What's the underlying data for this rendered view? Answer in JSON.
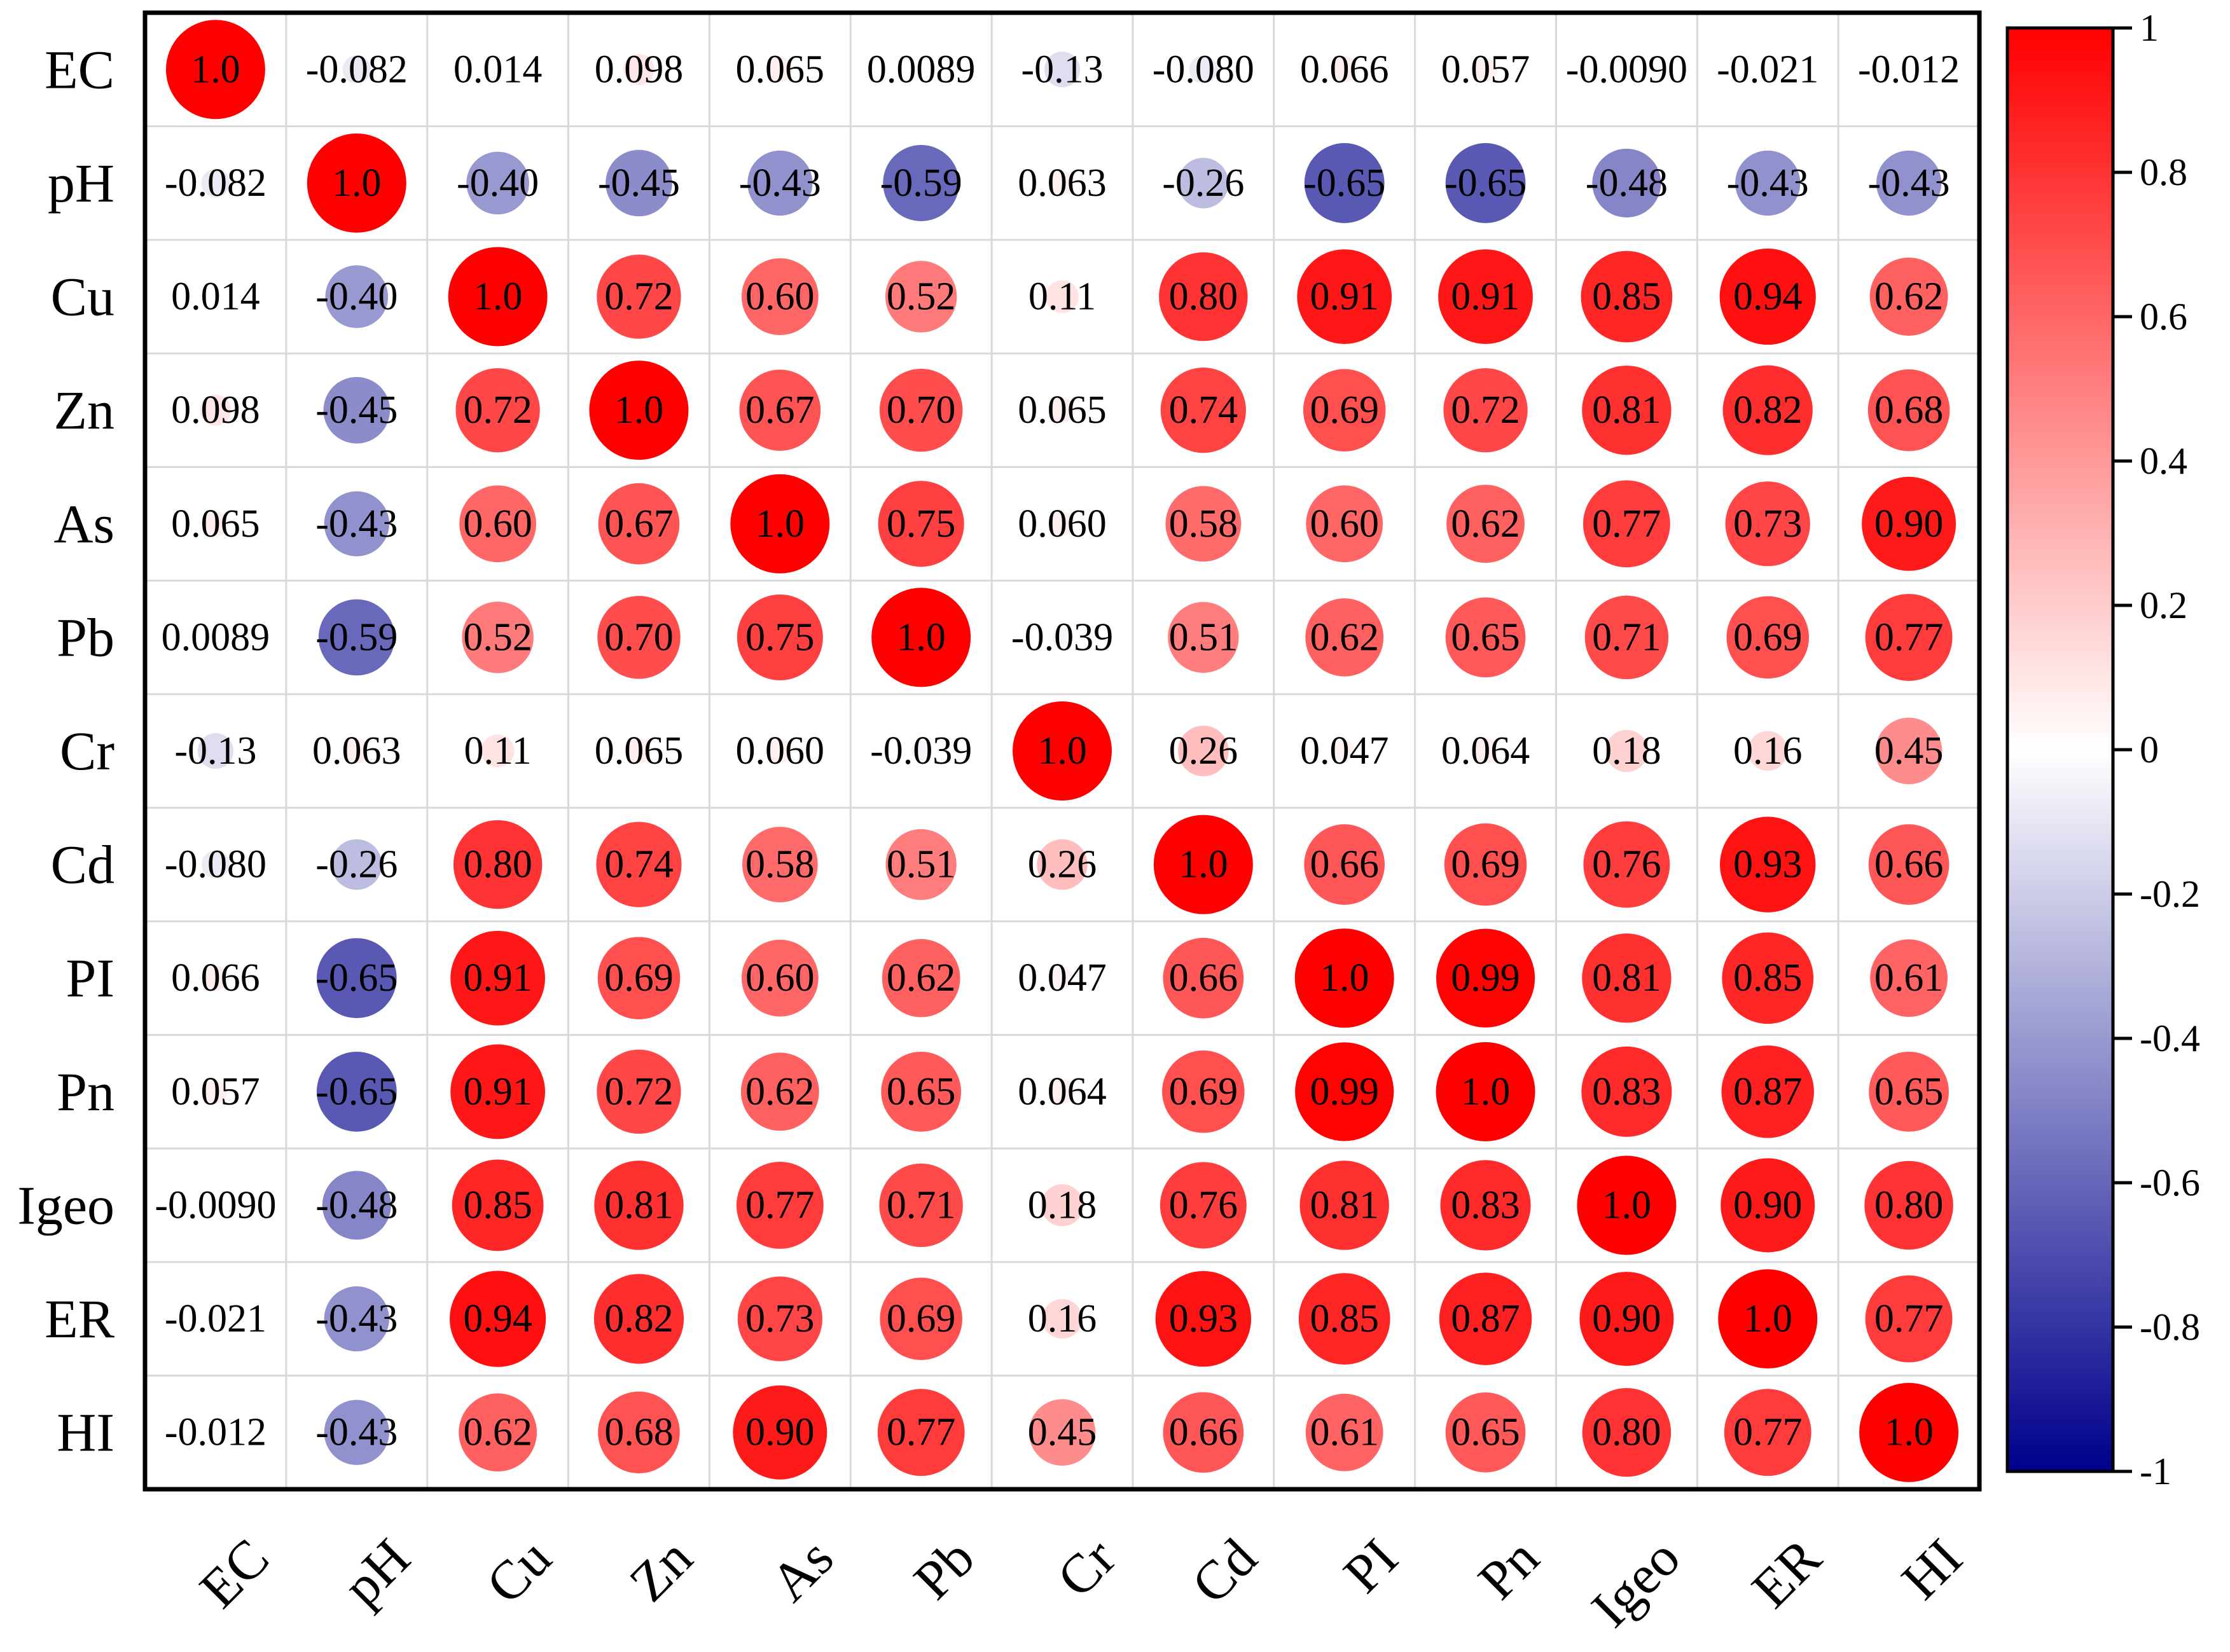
{
  "chart_data": {
    "type": "heatmap",
    "title": "",
    "variables": [
      "EC",
      "pH",
      "Cu",
      "Zn",
      "As",
      "Pb",
      "Cr",
      "Cd",
      "PI",
      "Pn",
      "Igeo",
      "ER",
      "HI"
    ],
    "matrix": [
      [
        1.0,
        -0.082,
        0.014,
        0.098,
        0.065,
        0.0089,
        -0.13,
        -0.08,
        0.066,
        0.057,
        -0.009,
        -0.021,
        -0.012
      ],
      [
        -0.082,
        1.0,
        -0.4,
        -0.45,
        -0.43,
        -0.59,
        0.063,
        -0.26,
        -0.65,
        -0.65,
        -0.48,
        -0.43,
        -0.43
      ],
      [
        0.014,
        -0.4,
        1.0,
        0.72,
        0.6,
        0.52,
        0.11,
        0.8,
        0.91,
        0.91,
        0.85,
        0.94,
        0.62
      ],
      [
        0.098,
        -0.45,
        0.72,
        1.0,
        0.67,
        0.7,
        0.065,
        0.74,
        0.69,
        0.72,
        0.81,
        0.82,
        0.68
      ],
      [
        0.065,
        -0.43,
        0.6,
        0.67,
        1.0,
        0.75,
        0.06,
        0.58,
        0.6,
        0.62,
        0.77,
        0.73,
        0.9
      ],
      [
        0.0089,
        -0.59,
        0.52,
        0.7,
        0.75,
        1.0,
        -0.039,
        0.51,
        0.62,
        0.65,
        0.71,
        0.69,
        0.77
      ],
      [
        -0.13,
        0.063,
        0.11,
        0.065,
        0.06,
        -0.039,
        1.0,
        0.26,
        0.047,
        0.064,
        0.18,
        0.16,
        0.45
      ],
      [
        -0.08,
        -0.26,
        0.8,
        0.74,
        0.58,
        0.51,
        0.26,
        1.0,
        0.66,
        0.69,
        0.76,
        0.93,
        0.66
      ],
      [
        0.066,
        -0.65,
        0.91,
        0.69,
        0.6,
        0.62,
        0.047,
        0.66,
        1.0,
        0.99,
        0.81,
        0.85,
        0.61
      ],
      [
        0.057,
        -0.65,
        0.91,
        0.72,
        0.62,
        0.65,
        0.064,
        0.69,
        0.99,
        1.0,
        0.83,
        0.87,
        0.65
      ],
      [
        -0.009,
        -0.48,
        0.85,
        0.81,
        0.77,
        0.71,
        0.18,
        0.76,
        0.81,
        0.83,
        1.0,
        0.9,
        0.8
      ],
      [
        -0.021,
        -0.43,
        0.94,
        0.82,
        0.73,
        0.69,
        0.16,
        0.93,
        0.85,
        0.87,
        0.9,
        1.0,
        0.77
      ],
      [
        -0.012,
        -0.43,
        0.62,
        0.68,
        0.9,
        0.77,
        0.45,
        0.66,
        0.61,
        0.65,
        0.8,
        0.77,
        1.0
      ]
    ],
    "cell_labels": [
      [
        "1.0",
        "-0.082",
        "0.014",
        "0.098",
        "0.065",
        "0.0089",
        "-0.13",
        "-0.080",
        "0.066",
        "0.057",
        "-0.0090",
        "-0.021",
        "-0.012"
      ],
      [
        "-0.082",
        "1.0",
        "-0.40",
        "-0.45",
        "-0.43",
        "-0.59",
        "0.063",
        "-0.26",
        "-0.65",
        "-0.65",
        "-0.48",
        "-0.43",
        "-0.43"
      ],
      [
        "0.014",
        "-0.40",
        "1.0",
        "0.72",
        "0.60",
        "0.52",
        "0.11",
        "0.80",
        "0.91",
        "0.91",
        "0.85",
        "0.94",
        "0.62"
      ],
      [
        "0.098",
        "-0.45",
        "0.72",
        "1.0",
        "0.67",
        "0.70",
        "0.065",
        "0.74",
        "0.69",
        "0.72",
        "0.81",
        "0.82",
        "0.68"
      ],
      [
        "0.065",
        "-0.43",
        "0.60",
        "0.67",
        "1.0",
        "0.75",
        "0.060",
        "0.58",
        "0.60",
        "0.62",
        "0.77",
        "0.73",
        "0.90"
      ],
      [
        "0.0089",
        "-0.59",
        "0.52",
        "0.70",
        "0.75",
        "1.0",
        "-0.039",
        "0.51",
        "0.62",
        "0.65",
        "0.71",
        "0.69",
        "0.77"
      ],
      [
        "-0.13",
        "0.063",
        "0.11",
        "0.065",
        "0.060",
        "-0.039",
        "1.0",
        "0.26",
        "0.047",
        "0.064",
        "0.18",
        "0.16",
        "0.45"
      ],
      [
        "-0.080",
        "-0.26",
        "0.80",
        "0.74",
        "0.58",
        "0.51",
        "0.26",
        "1.0",
        "0.66",
        "0.69",
        "0.76",
        "0.93",
        "0.66"
      ],
      [
        "0.066",
        "-0.65",
        "0.91",
        "0.69",
        "0.60",
        "0.62",
        "0.047",
        "0.66",
        "1.0",
        "0.99",
        "0.81",
        "0.85",
        "0.61"
      ],
      [
        "0.057",
        "-0.65",
        "0.91",
        "0.72",
        "0.62",
        "0.65",
        "0.064",
        "0.69",
        "0.99",
        "1.0",
        "0.83",
        "0.87",
        "0.65"
      ],
      [
        "-0.0090",
        "-0.48",
        "0.85",
        "0.81",
        "0.77",
        "0.71",
        "0.18",
        "0.76",
        "0.81",
        "0.83",
        "1.0",
        "0.90",
        "0.80"
      ],
      [
        "-0.021",
        "-0.43",
        "0.94",
        "0.82",
        "0.73",
        "0.69",
        "0.16",
        "0.93",
        "0.85",
        "0.87",
        "0.90",
        "1.0",
        "0.77"
      ],
      [
        "-0.012",
        "-0.43",
        "0.62",
        "0.68",
        "0.90",
        "0.77",
        "0.45",
        "0.66",
        "0.61",
        "0.65",
        "0.80",
        "0.77",
        "1.0"
      ]
    ],
    "colorbar": {
      "range": [
        -1,
        1
      ],
      "ticks": [
        1,
        0.8,
        0.6,
        0.4,
        0.2,
        0,
        -0.2,
        -0.4,
        -0.6,
        -0.8,
        -1
      ],
      "tick_labels": [
        "1",
        "0.8",
        "0.6",
        "0.4",
        "0.2",
        "0",
        "-0.2",
        "-0.4",
        "-0.6",
        "-0.8",
        "-1"
      ],
      "colors": {
        "negative": "#00008b",
        "zero": "#ffffff",
        "positive": "#ff0000"
      }
    },
    "grid": true,
    "marker": "circle, size proportional to |r|, color by r",
    "legend_placement": "right"
  }
}
